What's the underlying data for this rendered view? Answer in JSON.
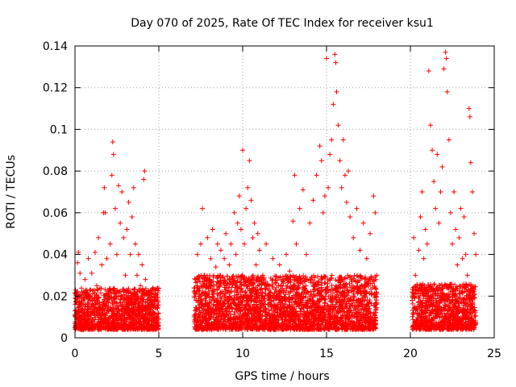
{
  "chart_data": {
    "type": "scatter",
    "title": "Day 070 of 2025, Rate Of TEC Index for receiver ksu1",
    "xlabel": "GPS time / hours",
    "ylabel": "ROTI / TECUs",
    "xlim": [
      0,
      25
    ],
    "ylim": [
      0,
      0.14
    ],
    "xticks": [
      0,
      5,
      10,
      15,
      20,
      25
    ],
    "yticks": [
      0,
      0.02,
      0.04,
      0.06,
      0.08,
      0.1,
      0.12,
      0.14
    ],
    "xtick_labels": [
      "0",
      "5",
      "10",
      "15",
      "20",
      "25"
    ],
    "ytick_labels": [
      "0",
      "0.02",
      "0.04",
      "0.06",
      "0.08",
      "0.1",
      "0.12",
      "0.14"
    ],
    "grid": true,
    "marker": "+",
    "color": "#ff0000",
    "series": [
      {
        "points": [
          [
            0.05,
            0.01
          ],
          [
            0.1,
            0.022
          ],
          [
            0.15,
            0.036
          ],
          [
            0.2,
            0.041
          ],
          [
            0.25,
            0.015
          ],
          [
            0.3,
            0.031
          ],
          [
            0.4,
            0.008
          ],
          [
            0.5,
            0.018
          ],
          [
            0.6,
            0.028
          ],
          [
            0.7,
            0.012
          ],
          [
            0.8,
            0.038
          ],
          [
            0.9,
            0.02
          ],
          [
            1.0,
            0.031
          ],
          [
            1.1,
            0.015
          ],
          [
            1.2,
            0.041
          ],
          [
            1.3,
            0.025
          ],
          [
            1.4,
            0.048
          ],
          [
            1.5,
            0.012
          ],
          [
            1.6,
            0.035
          ],
          [
            1.7,
            0.06
          ],
          [
            1.75,
            0.072
          ],
          [
            1.8,
            0.06
          ],
          [
            1.9,
            0.038
          ],
          [
            2.0,
            0.02
          ],
          [
            2.1,
            0.045
          ],
          [
            2.2,
            0.078
          ],
          [
            2.25,
            0.094
          ],
          [
            2.3,
            0.088
          ],
          [
            2.4,
            0.062
          ],
          [
            2.5,
            0.04
          ],
          [
            2.6,
            0.073
          ],
          [
            2.7,
            0.055
          ],
          [
            2.8,
            0.07
          ],
          [
            2.9,
            0.048
          ],
          [
            3.0,
            0.03
          ],
          [
            3.1,
            0.052
          ],
          [
            3.2,
            0.065
          ],
          [
            3.3,
            0.04
          ],
          [
            3.4,
            0.058
          ],
          [
            3.5,
            0.072
          ],
          [
            3.6,
            0.045
          ],
          [
            3.7,
            0.03
          ],
          [
            3.8,
            0.04
          ],
          [
            3.9,
            0.025
          ],
          [
            4.0,
            0.035
          ],
          [
            4.1,
            0.076
          ],
          [
            4.15,
            0.08
          ],
          [
            4.2,
            0.028
          ],
          [
            4.3,
            0.015
          ],
          [
            4.4,
            0.022
          ],
          [
            4.5,
            0.012
          ],
          [
            4.6,
            0.008
          ],
          [
            4.7,
            0.018
          ],
          [
            4.8,
            0.01
          ],
          [
            4.9,
            0.006
          ],
          [
            5.0,
            0.009
          ],
          [
            7.1,
            0.01
          ],
          [
            7.2,
            0.028
          ],
          [
            7.3,
            0.04
          ],
          [
            7.4,
            0.02
          ],
          [
            7.5,
            0.045
          ],
          [
            7.6,
            0.062
          ],
          [
            7.7,
            0.03
          ],
          [
            7.8,
            0.012
          ],
          [
            7.9,
            0.048
          ],
          [
            8.0,
            0.022
          ],
          [
            8.1,
            0.038
          ],
          [
            8.2,
            0.052
          ],
          [
            8.3,
            0.018
          ],
          [
            8.4,
            0.034
          ],
          [
            8.5,
            0.045
          ],
          [
            8.6,
            0.025
          ],
          [
            8.7,
            0.042
          ],
          [
            8.8,
            0.015
          ],
          [
            8.9,
            0.038
          ],
          [
            9.0,
            0.05
          ],
          [
            9.1,
            0.022
          ],
          [
            9.2,
            0.035
          ],
          [
            9.3,
            0.045
          ],
          [
            9.4,
            0.028
          ],
          [
            9.5,
            0.06
          ],
          [
            9.6,
            0.04
          ],
          [
            9.7,
            0.055
          ],
          [
            9.8,
            0.068
          ],
          [
            9.9,
            0.052
          ],
          [
            10.0,
            0.09
          ],
          [
            10.1,
            0.045
          ],
          [
            10.2,
            0.062
          ],
          [
            10.3,
            0.072
          ],
          [
            10.4,
            0.085
          ],
          [
            10.5,
            0.066
          ],
          [
            10.6,
            0.048
          ],
          [
            10.7,
            0.055
          ],
          [
            10.8,
            0.035
          ],
          [
            10.9,
            0.05
          ],
          [
            11.0,
            0.042
          ],
          [
            11.2,
            0.03
          ],
          [
            11.4,
            0.045
          ],
          [
            11.6,
            0.025
          ],
          [
            11.8,
            0.038
          ],
          [
            12.0,
            0.02
          ],
          [
            12.2,
            0.035
          ],
          [
            12.4,
            0.028
          ],
          [
            12.6,
            0.04
          ],
          [
            12.8,
            0.032
          ],
          [
            13.0,
            0.056
          ],
          [
            13.1,
            0.078
          ],
          [
            13.2,
            0.045
          ],
          [
            13.4,
            0.062
          ],
          [
            13.6,
            0.071
          ],
          [
            13.8,
            0.04
          ],
          [
            14.0,
            0.055
          ],
          [
            14.2,
            0.066
          ],
          [
            14.4,
            0.078
          ],
          [
            14.6,
            0.092
          ],
          [
            14.7,
            0.085
          ],
          [
            14.8,
            0.06
          ],
          [
            14.9,
            0.068
          ],
          [
            15.0,
            0.134
          ],
          [
            15.1,
            0.072
          ],
          [
            15.2,
            0.088
          ],
          [
            15.3,
            0.095
          ],
          [
            15.4,
            0.112
          ],
          [
            15.5,
            0.136
          ],
          [
            15.55,
            0.132
          ],
          [
            15.6,
            0.118
          ],
          [
            15.7,
            0.102
          ],
          [
            15.8,
            0.085
          ],
          [
            15.9,
            0.072
          ],
          [
            16.0,
            0.095
          ],
          [
            16.1,
            0.078
          ],
          [
            16.2,
            0.065
          ],
          [
            16.3,
            0.08
          ],
          [
            16.4,
            0.058
          ],
          [
            16.6,
            0.048
          ],
          [
            16.8,
            0.062
          ],
          [
            17.0,
            0.042
          ],
          [
            17.2,
            0.055
          ],
          [
            17.4,
            0.038
          ],
          [
            17.6,
            0.05
          ],
          [
            17.8,
            0.068
          ],
          [
            17.9,
            0.06
          ],
          [
            18.0,
            0.03
          ],
          [
            20.1,
            0.02
          ],
          [
            20.2,
            0.048
          ],
          [
            20.3,
            0.03
          ],
          [
            20.4,
            0.015
          ],
          [
            20.5,
            0.042
          ],
          [
            20.6,
            0.058
          ],
          [
            20.7,
            0.07
          ],
          [
            20.8,
            0.038
          ],
          [
            20.9,
            0.052
          ],
          [
            21.0,
            0.045
          ],
          [
            21.1,
            0.128
          ],
          [
            21.2,
            0.102
          ],
          [
            21.3,
            0.09
          ],
          [
            21.4,
            0.075
          ],
          [
            21.5,
            0.062
          ],
          [
            21.6,
            0.088
          ],
          [
            21.7,
            0.055
          ],
          [
            21.8,
            0.07
          ],
          [
            21.9,
            0.082
          ],
          [
            22.0,
            0.129
          ],
          [
            22.1,
            0.137
          ],
          [
            22.15,
            0.134
          ],
          [
            22.2,
            0.118
          ],
          [
            22.3,
            0.095
          ],
          [
            22.4,
            0.06
          ],
          [
            22.5,
            0.045
          ],
          [
            22.6,
            0.07
          ],
          [
            22.7,
            0.052
          ],
          [
            22.8,
            0.035
          ],
          [
            22.9,
            0.048
          ],
          [
            23.0,
            0.062
          ],
          [
            23.1,
            0.038
          ],
          [
            23.2,
            0.058
          ],
          [
            23.3,
            0.04
          ],
          [
            23.4,
            0.03
          ],
          [
            23.5,
            0.11
          ],
          [
            23.55,
            0.106
          ],
          [
            23.6,
            0.084
          ],
          [
            23.7,
            0.07
          ],
          [
            23.8,
            0.05
          ],
          [
            23.9,
            0.04
          ]
        ]
      }
    ]
  }
}
